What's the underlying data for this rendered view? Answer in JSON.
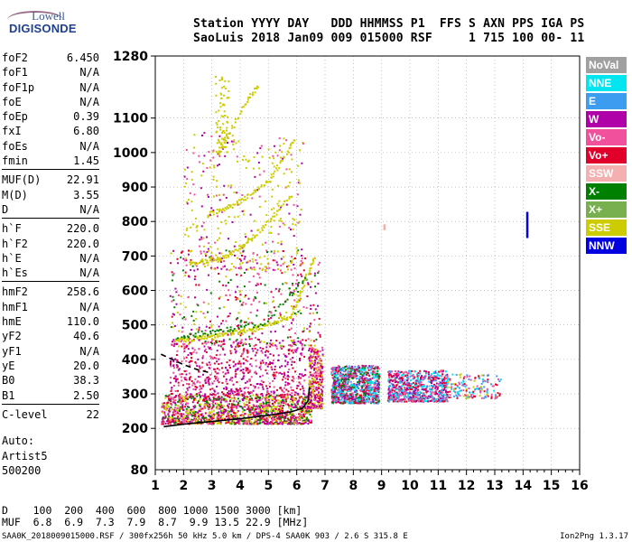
{
  "logo": {
    "line1": "Lowell",
    "line2": "DIGISONDE"
  },
  "header": {
    "line1": "Station YYYY DAY   DDD HHMMSS P1  FFS S AXN PPS IGA PS",
    "line2": "SaoLuis 2018 Jan09 009 015000 RSF     1 715 100 00- 11"
  },
  "param_groups": [
    [
      {
        "k": "foF2",
        "v": "6.450"
      },
      {
        "k": "foF1",
        "v": "N/A"
      },
      {
        "k": "foF1p",
        "v": "N/A"
      },
      {
        "k": "foE",
        "v": "N/A"
      },
      {
        "k": "foEp",
        "v": "0.39"
      },
      {
        "k": "fxI",
        "v": "6.80"
      },
      {
        "k": "foEs",
        "v": "N/A"
      },
      {
        "k": "fmin",
        "v": "1.45"
      }
    ],
    [
      {
        "k": "MUF(D)",
        "v": "22.91"
      },
      {
        "k": "M(D)",
        "v": "3.55"
      },
      {
        "k": "D",
        "v": "N/A"
      }
    ],
    [
      {
        "k": "h`F",
        "v": "220.0"
      },
      {
        "k": "h`F2",
        "v": "220.0"
      },
      {
        "k": "h`E",
        "v": "N/A"
      },
      {
        "k": "h`Es",
        "v": "N/A"
      }
    ],
    [
      {
        "k": "hmF2",
        "v": "258.6"
      },
      {
        "k": "hmF1",
        "v": "N/A"
      },
      {
        "k": "hmE",
        "v": "110.0"
      },
      {
        "k": "yF2",
        "v": "40.6"
      },
      {
        "k": "yF1",
        "v": "N/A"
      },
      {
        "k": "yE",
        "v": "20.0"
      },
      {
        "k": "B0",
        "v": "38.3"
      },
      {
        "k": "B1",
        "v": "2.50"
      }
    ],
    [
      {
        "k": "C-level",
        "v": "22"
      }
    ]
  ],
  "auto": {
    "line1": "Auto:",
    "line2": "Artist5",
    "line3": "500200"
  },
  "legend": [
    {
      "label": "NoVal",
      "color": "#a0a0a0"
    },
    {
      "label": "NNE",
      "color": "#00e6f0"
    },
    {
      "label": "E",
      "color": "#3c9cf0"
    },
    {
      "label": "W",
      "color": "#b000a8"
    },
    {
      "label": "Vo-",
      "color": "#f0509c"
    },
    {
      "label": "Vo+",
      "color": "#e0002a"
    },
    {
      "label": "SSW",
      "color": "#f4b0b0"
    },
    {
      "label": "X-",
      "color": "#008000"
    },
    {
      "label": "X+",
      "color": "#78b050"
    },
    {
      "label": "SSE",
      "color": "#cccc00"
    },
    {
      "label": "NNW",
      "color": "#0000e0"
    }
  ],
  "bottom": {
    "d_row": "D    100  200  400  600  800 1000 1500 3000 [km]",
    "muf_row": "MUF  6.8  6.9  7.3  7.9  8.7  9.9 13.5 22.9 [MHz]",
    "footer": "SAA0K_2018009015000.RSF / 300fx256h 50 kHz 5.0 km / DPS-4 SAA0K 903 / 2.6 S 315.8 E",
    "version": "Ion2Png 1.3.17"
  },
  "chart_data": {
    "type": "scatter",
    "xlim": [
      1,
      16
    ],
    "ylim": [
      80,
      1280
    ],
    "x_ticks": [
      "1",
      "2",
      "3",
      "4",
      "5",
      "6",
      "7",
      "8",
      "9",
      "10",
      "11",
      "12",
      "13",
      "14",
      "15",
      "16"
    ],
    "y_ticks": [
      {
        "value": 200,
        "label": "200"
      },
      {
        "value": 300,
        "label": "300"
      },
      {
        "value": 400,
        "label": "400"
      },
      {
        "value": 500,
        "label": "500"
      },
      {
        "value": 600,
        "label": "600"
      },
      {
        "value": 700,
        "label": "700"
      },
      {
        "value": 800,
        "label": "800"
      },
      {
        "value": 900,
        "label": "900"
      },
      {
        "value": 1000,
        "label": "1000"
      },
      {
        "value": 1100,
        "label": "1100"
      },
      {
        "value": 1280,
        "label": "1280"
      }
    ],
    "y_bottom_label": "80",
    "grid": "dotted",
    "traces": [
      {
        "name": "O-trace fit",
        "color": "#000000",
        "style": "solid",
        "x": [
          1.3,
          2.0,
          3.0,
          4.0,
          5.0,
          5.8,
          6.2,
          6.4,
          6.45
        ],
        "y": [
          205,
          212,
          220,
          228,
          238,
          248,
          258,
          280,
          320
        ]
      },
      {
        "name": "Topside profile",
        "color": "#000000",
        "style": "dashed",
        "x": [
          1.2,
          1.6,
          2.0,
          2.5,
          3.0
        ],
        "y": [
          415,
          400,
          385,
          370,
          360
        ]
      }
    ],
    "clusters": [
      {
        "xr": [
          1.2,
          6.5
        ],
        "yr": [
          215,
          300
        ],
        "count": 1400,
        "colors": [
          "#e0002a",
          "#f0509c",
          "#b000a8",
          "#008000",
          "#cccc00"
        ]
      },
      {
        "xr": [
          6.4,
          6.9
        ],
        "yr": [
          260,
          440
        ],
        "count": 300,
        "colors": [
          "#e0002a",
          "#f0509c",
          "#b000a8",
          "#cccc00"
        ]
      },
      {
        "xr": [
          7.2,
          8.9
        ],
        "yr": [
          275,
          385
        ],
        "count": 900,
        "colors": [
          "#b000a8",
          "#3c9cf0",
          "#e0002a",
          "#f0509c",
          "#00e6f0",
          "#008000"
        ]
      },
      {
        "xr": [
          9.2,
          11.3
        ],
        "yr": [
          280,
          370
        ],
        "count": 700,
        "colors": [
          "#b000a8",
          "#3c9cf0",
          "#00e6f0",
          "#e0002a",
          "#f0509c"
        ]
      },
      {
        "xr": [
          11.3,
          13.2
        ],
        "yr": [
          290,
          360
        ],
        "count": 160,
        "colors": [
          "#00e6f0",
          "#3c9cf0",
          "#e0002a",
          "#cccc00",
          "#f0509c"
        ]
      },
      {
        "xr": [
          1.5,
          6.3
        ],
        "yr": [
          300,
          460
        ],
        "count": 600,
        "colors": [
          "#b000a8",
          "#f0509c",
          "#e0002a"
        ]
      },
      {
        "xr": [
          1.5,
          6.8
        ],
        "yr": [
          440,
          720
        ],
        "count": 450,
        "colors": [
          "#b000a8",
          "#cccc00",
          "#008000",
          "#e0002a",
          "#f0509c"
        ]
      },
      {
        "xr": [
          2.0,
          6.2
        ],
        "yr": [
          660,
          1060
        ],
        "count": 350,
        "colors": [
          "#cccc00",
          "#cccc00",
          "#b000a8",
          "#f0509c"
        ]
      },
      {
        "xr": [
          3.1,
          3.6
        ],
        "yr": [
          1000,
          1240
        ],
        "count": 70,
        "colors": [
          "#cccc00"
        ]
      }
    ],
    "arcs": [
      {
        "x": [
          1.7,
          3.0,
          4.5,
          5.8,
          6.6
        ],
        "y": [
          455,
          470,
          490,
          530,
          700
        ],
        "color": "#cccc00",
        "n": 160
      },
      {
        "x": [
          1.9,
          3.2,
          4.8,
          6.3
        ],
        "y": [
          470,
          485,
          505,
          640
        ],
        "color": "#008000",
        "n": 60
      },
      {
        "x": [
          2.2,
          3.5,
          4.5,
          5.8
        ],
        "y": [
          680,
          700,
          760,
          880
        ],
        "color": "#cccc00",
        "n": 90
      },
      {
        "x": [
          2.8,
          3.8,
          5.0,
          5.9
        ],
        "y": [
          820,
          850,
          920,
          1040
        ],
        "color": "#cccc00",
        "n": 80
      },
      {
        "x": [
          3.2,
          3.6,
          4.2,
          4.6
        ],
        "y": [
          1000,
          1060,
          1150,
          1200
        ],
        "color": "#cccc00",
        "n": 45
      }
    ],
    "markers": [
      {
        "x": 14.15,
        "y1": 752,
        "y2": 828,
        "color": "#0000e0"
      },
      {
        "x": 9.1,
        "y1": 775,
        "y2": 792,
        "color": "#f4b0b0"
      }
    ]
  }
}
